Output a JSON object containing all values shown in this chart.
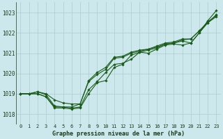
{
  "title": "Graphe pression niveau de la mer (hPa)",
  "bg_color": "#cce8ec",
  "grid_color": "#aacccc",
  "line_color": "#1a5c1a",
  "marker_color": "#1a5c1a",
  "xlim": [
    -0.5,
    23.5
  ],
  "ylim": [
    1017.5,
    1023.5
  ],
  "yticks": [
    1018,
    1019,
    1020,
    1021,
    1022,
    1023
  ],
  "xtick_labels": [
    "0",
    "1",
    "2",
    "3",
    "4",
    "5",
    "6",
    "7",
    "8",
    "9",
    "10",
    "11",
    "12",
    "13",
    "14",
    "15",
    "16",
    "17",
    "18",
    "19",
    "20",
    "21",
    "22",
    "23"
  ],
  "series": [
    [
      1019.0,
      1019.0,
      1019.0,
      1018.85,
      1018.3,
      1018.3,
      1018.25,
      1018.3,
      1019.0,
      1019.55,
      1019.65,
      1020.3,
      1020.45,
      1020.9,
      1021.05,
      1021.0,
      1021.2,
      1021.4,
      1021.45,
      1021.4,
      1021.5,
      1022.0,
      1022.6,
      1023.1
    ],
    [
      1019.0,
      1019.0,
      1019.0,
      1018.85,
      1018.35,
      1018.35,
      1018.3,
      1018.35,
      1019.2,
      1019.6,
      1020.05,
      1020.45,
      1020.5,
      1020.7,
      1021.05,
      1021.15,
      1021.25,
      1021.45,
      1021.5,
      1021.6,
      1021.5,
      1022.0,
      1022.5,
      1022.9
    ],
    [
      1019.0,
      1019.0,
      1019.1,
      1019.0,
      1018.7,
      1018.55,
      1018.5,
      1018.5,
      1019.6,
      1019.95,
      1020.2,
      1020.75,
      1020.8,
      1021.0,
      1021.1,
      1021.2,
      1021.3,
      1021.45,
      1021.5,
      1021.65,
      1021.7,
      1022.1,
      1022.55,
      1022.85
    ],
    [
      1019.0,
      1019.0,
      1019.1,
      1018.95,
      1018.4,
      1018.35,
      1018.35,
      1018.5,
      1019.65,
      1020.05,
      1020.3,
      1020.8,
      1020.85,
      1021.05,
      1021.15,
      1021.2,
      1021.35,
      1021.5,
      1021.55,
      1021.7,
      1021.7,
      1022.1,
      1022.5,
      1022.8
    ]
  ]
}
